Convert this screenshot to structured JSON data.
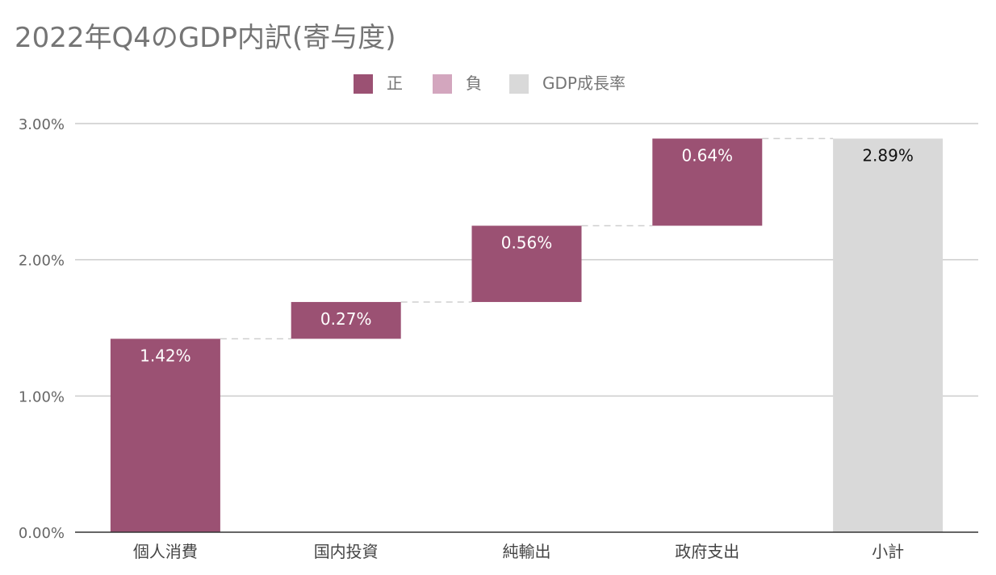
{
  "chart_data": {
    "type": "waterfall",
    "title": "2022年Q4のGDP内訳(寄与度)",
    "legend": {
      "placement": "top-center",
      "entries": [
        {
          "label": "正",
          "color": "#9b5173"
        },
        {
          "label": "負",
          "color": "#d3a6be"
        },
        {
          "label": "GDP成長率",
          "color": "#d9d9d9"
        }
      ]
    },
    "categories": [
      "個人消費",
      "国内投資",
      "純輸出",
      "政府支出",
      "小計"
    ],
    "values": [
      1.42,
      0.27,
      0.56,
      0.64,
      2.89
    ],
    "data_labels": [
      "1.42%",
      "0.27%",
      "0.56%",
      "0.64%",
      "2.89%"
    ],
    "bar_kinds": [
      "正",
      "正",
      "正",
      "正",
      "GDP成長率"
    ],
    "y_ticks": [
      "0.00%",
      "1.00%",
      "2.00%",
      "3.00%"
    ],
    "ylim": [
      0,
      3.0
    ],
    "grid": true,
    "connector_lines": true
  }
}
